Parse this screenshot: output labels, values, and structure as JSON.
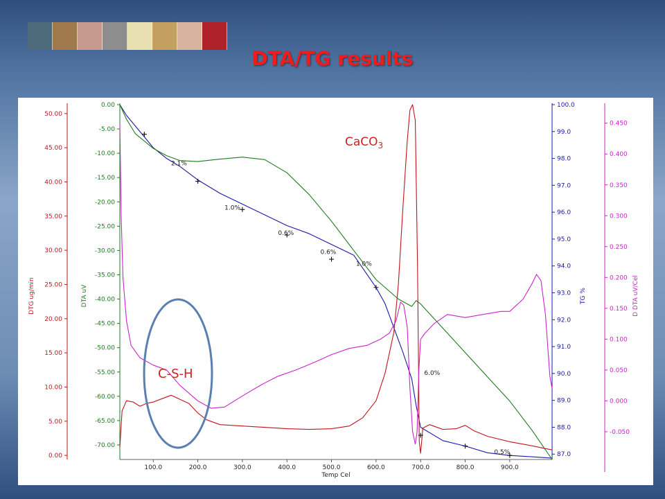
{
  "slide": {
    "title": "DTA/TG results"
  },
  "header_images": [
    "thumb-1",
    "thumb-2",
    "thumb-3",
    "thumb-4",
    "thumb-5",
    "thumb-6",
    "thumb-7",
    "thumb-8"
  ],
  "colors": {
    "title": "#ee1c1c",
    "dtg": "#c0141c",
    "dta": "#1f7a1f",
    "tg": "#1a1aa8",
    "ddta": "#cc22cc",
    "ellipse": "#5a7fb0",
    "annotation_red": "#cc2222"
  },
  "chart_data": {
    "type": "line",
    "title": "",
    "xlabel": "Temp Cel",
    "x_ticks": [
      "100.0",
      "200.0",
      "300.0",
      "400.0",
      "500.0",
      "600.0",
      "700.0",
      "800.0",
      "900.0"
    ],
    "xlim": [
      25,
      995
    ],
    "axes": {
      "dtg": {
        "label": "DTG ug/min",
        "ticks": [
          "0.00",
          "5.00",
          "10.00",
          "15.00",
          "20.00",
          "25.00",
          "30.00",
          "35.00",
          "40.00",
          "45.00",
          "50.00"
        ],
        "ylim": [
          -0.6,
          51.3
        ]
      },
      "dta": {
        "label": "DTA uV",
        "ticks": [
          "0.00",
          "-5.00",
          "-10.00",
          "-15.00",
          "-20.00",
          "-25.00",
          "-30.00",
          "-35.00",
          "-40.00",
          "-45.00",
          "-50.00",
          "-55.00",
          "-60.00",
          "-65.00",
          "-70.00"
        ],
        "ylim": [
          -73,
          0
        ]
      },
      "tg": {
        "label": "TG %",
        "ticks": [
          "100.0",
          "99.0",
          "98.0",
          "97.0",
          "96.0",
          "95.0",
          "94.0",
          "93.0",
          "92.0",
          "91.0",
          "90.0",
          "89.0",
          "88.0",
          "87.0"
        ],
        "ylim": [
          86.8,
          100
        ]
      },
      "ddta": {
        "label": "D DTA uV/Cel",
        "ticks": [
          "0.450",
          "0.400",
          "0.350",
          "0.300",
          "0.250",
          "0.200",
          "0.150",
          "0.100",
          "0.050",
          "0.000",
          "-0.050"
        ],
        "ylim": [
          -0.095,
          0.48
        ]
      }
    },
    "series": [
      {
        "axis": "tg",
        "x": [
          25,
          40,
          60,
          80,
          100,
          130,
          160,
          200,
          250,
          300,
          350,
          400,
          450,
          500,
          550,
          600,
          620,
          640,
          660,
          680,
          690,
          700,
          750,
          800,
          850,
          900,
          950,
          995
        ],
        "y": [
          100.0,
          99.6,
          99.2,
          98.8,
          98.4,
          98.0,
          97.7,
          97.2,
          96.7,
          96.3,
          95.9,
          95.5,
          95.2,
          94.8,
          94.4,
          93.2,
          92.6,
          91.7,
          90.8,
          89.8,
          88.8,
          88.0,
          87.5,
          87.3,
          87.05,
          86.95,
          86.9,
          86.85
        ]
      },
      {
        "axis": "dta",
        "x": [
          25,
          40,
          60,
          80,
          100,
          130,
          160,
          200,
          250,
          300,
          350,
          400,
          450,
          500,
          550,
          600,
          650,
          680,
          690,
          700,
          750,
          800,
          850,
          900,
          950,
          995
        ],
        "y": [
          0,
          -3,
          -6,
          -7.5,
          -9,
          -10.5,
          -11.5,
          -11.7,
          -11.2,
          -10.8,
          -11.3,
          -14,
          -18.5,
          -24,
          -30,
          -36,
          -40,
          -41.5,
          -40.3,
          -41,
          -46,
          -51,
          -56,
          -61,
          -67,
          -73
        ]
      },
      {
        "axis": "dtg",
        "x": [
          25,
          30,
          40,
          55,
          70,
          85,
          100,
          120,
          140,
          160,
          180,
          200,
          220,
          250,
          300,
          350,
          400,
          450,
          500,
          540,
          570,
          600,
          620,
          640,
          650,
          660,
          670,
          676,
          682,
          688,
          693,
          697,
          700,
          705,
          720,
          750,
          780,
          800,
          820,
          850,
          900,
          950,
          995
        ],
        "y": [
          1.2,
          6.5,
          8.0,
          7.8,
          7.2,
          7.6,
          7.8,
          8.3,
          8.8,
          8.2,
          7.6,
          6.2,
          5.2,
          4.5,
          4.3,
          4.1,
          3.9,
          3.8,
          3.9,
          4.3,
          5.5,
          8.0,
          12.0,
          18.0,
          25.0,
          36.0,
          46.0,
          50.5,
          51.3,
          49.0,
          28.0,
          2.0,
          0.3,
          4.0,
          4.5,
          3.8,
          3.9,
          4.4,
          3.6,
          2.8,
          2.0,
          1.4,
          0.8
        ]
      },
      {
        "axis": "ddta",
        "x": [
          25,
          28,
          32,
          40,
          50,
          70,
          100,
          130,
          160,
          200,
          230,
          260,
          300,
          340,
          380,
          420,
          460,
          500,
          540,
          580,
          610,
          630,
          645,
          655,
          662,
          670,
          676,
          682,
          688,
          692,
          696,
          700,
          710,
          730,
          760,
          800,
          840,
          880,
          900,
          930,
          950,
          960,
          970,
          980,
          990,
          995
        ],
        "y": [
          0.45,
          0.3,
          0.2,
          0.13,
          0.09,
          0.07,
          0.058,
          0.05,
          0.025,
          0.0,
          -0.012,
          -0.01,
          0.008,
          0.025,
          0.04,
          0.05,
          0.062,
          0.075,
          0.085,
          0.09,
          0.1,
          0.11,
          0.13,
          0.16,
          0.155,
          0.12,
          0.02,
          -0.05,
          -0.07,
          -0.05,
          0.05,
          0.1,
          0.11,
          0.125,
          0.14,
          0.135,
          0.14,
          0.145,
          0.145,
          0.165,
          0.19,
          0.205,
          0.195,
          0.14,
          0.04,
          0.02
        ]
      }
    ],
    "annotations": [
      {
        "text": "2.1%",
        "x": 140,
        "axis": "tg",
        "y": 97.75
      },
      {
        "text": "1.0%",
        "x": 260,
        "axis": "tg",
        "y": 96.1
      },
      {
        "text": "0.6%",
        "x": 380,
        "axis": "tg",
        "y": 95.15
      },
      {
        "text": "0.6%",
        "x": 475,
        "axis": "tg",
        "y": 94.45
      },
      {
        "text": "1.0%",
        "x": 555,
        "axis": "tg",
        "y": 94.0
      },
      {
        "text": "6.0%",
        "x": 708,
        "axis": "tg",
        "y": 89.95
      },
      {
        "text": "0.5%",
        "x": 865,
        "axis": "tg",
        "y": 87.0
      }
    ],
    "markers": [
      {
        "axis": "tg",
        "x": 80,
        "y": 98.9
      },
      {
        "axis": "tg",
        "x": 200,
        "y": 97.15
      },
      {
        "axis": "tg",
        "x": 300,
        "y": 96.1
      },
      {
        "axis": "tg",
        "x": 400,
        "y": 95.15
      },
      {
        "axis": "tg",
        "x": 500,
        "y": 94.25
      },
      {
        "axis": "tg",
        "x": 600,
        "y": 93.2
      },
      {
        "axis": "tg",
        "x": 700,
        "y": 87.7
      },
      {
        "axis": "tg",
        "x": 800,
        "y": 87.3
      },
      {
        "axis": "tg",
        "x": 900,
        "y": 86.95
      }
    ],
    "labels": {
      "caco3_main": "CaCO",
      "caco3_sub": "3",
      "csh": "C-S-H"
    }
  }
}
